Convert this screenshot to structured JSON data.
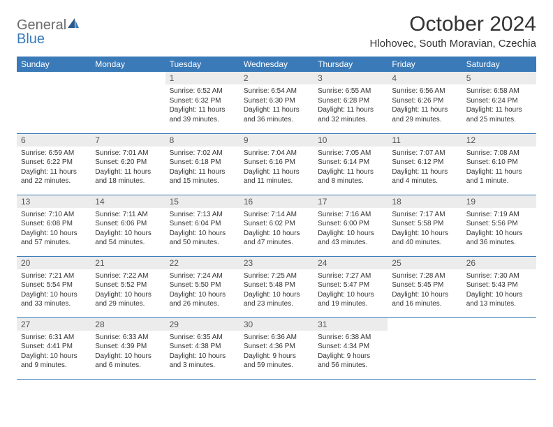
{
  "logo": {
    "text1": "General",
    "text2": "Blue"
  },
  "title": "October 2024",
  "location": "Hlohovec, South Moravian, Czechia",
  "colors": {
    "accent": "#3a7ab8",
    "header_bg": "#3a7ab8",
    "daynum_bg": "#ececec",
    "text": "#333333"
  },
  "weekdays": [
    "Sunday",
    "Monday",
    "Tuesday",
    "Wednesday",
    "Thursday",
    "Friday",
    "Saturday"
  ],
  "weeks": [
    [
      {
        "empty": true
      },
      {
        "empty": true
      },
      {
        "num": "1",
        "sunrise": "Sunrise: 6:52 AM",
        "sunset": "Sunset: 6:32 PM",
        "daylight": "Daylight: 11 hours and 39 minutes."
      },
      {
        "num": "2",
        "sunrise": "Sunrise: 6:54 AM",
        "sunset": "Sunset: 6:30 PM",
        "daylight": "Daylight: 11 hours and 36 minutes."
      },
      {
        "num": "3",
        "sunrise": "Sunrise: 6:55 AM",
        "sunset": "Sunset: 6:28 PM",
        "daylight": "Daylight: 11 hours and 32 minutes."
      },
      {
        "num": "4",
        "sunrise": "Sunrise: 6:56 AM",
        "sunset": "Sunset: 6:26 PM",
        "daylight": "Daylight: 11 hours and 29 minutes."
      },
      {
        "num": "5",
        "sunrise": "Sunrise: 6:58 AM",
        "sunset": "Sunset: 6:24 PM",
        "daylight": "Daylight: 11 hours and 25 minutes."
      }
    ],
    [
      {
        "num": "6",
        "sunrise": "Sunrise: 6:59 AM",
        "sunset": "Sunset: 6:22 PM",
        "daylight": "Daylight: 11 hours and 22 minutes."
      },
      {
        "num": "7",
        "sunrise": "Sunrise: 7:01 AM",
        "sunset": "Sunset: 6:20 PM",
        "daylight": "Daylight: 11 hours and 18 minutes."
      },
      {
        "num": "8",
        "sunrise": "Sunrise: 7:02 AM",
        "sunset": "Sunset: 6:18 PM",
        "daylight": "Daylight: 11 hours and 15 minutes."
      },
      {
        "num": "9",
        "sunrise": "Sunrise: 7:04 AM",
        "sunset": "Sunset: 6:16 PM",
        "daylight": "Daylight: 11 hours and 11 minutes."
      },
      {
        "num": "10",
        "sunrise": "Sunrise: 7:05 AM",
        "sunset": "Sunset: 6:14 PM",
        "daylight": "Daylight: 11 hours and 8 minutes."
      },
      {
        "num": "11",
        "sunrise": "Sunrise: 7:07 AM",
        "sunset": "Sunset: 6:12 PM",
        "daylight": "Daylight: 11 hours and 4 minutes."
      },
      {
        "num": "12",
        "sunrise": "Sunrise: 7:08 AM",
        "sunset": "Sunset: 6:10 PM",
        "daylight": "Daylight: 11 hours and 1 minute."
      }
    ],
    [
      {
        "num": "13",
        "sunrise": "Sunrise: 7:10 AM",
        "sunset": "Sunset: 6:08 PM",
        "daylight": "Daylight: 10 hours and 57 minutes."
      },
      {
        "num": "14",
        "sunrise": "Sunrise: 7:11 AM",
        "sunset": "Sunset: 6:06 PM",
        "daylight": "Daylight: 10 hours and 54 minutes."
      },
      {
        "num": "15",
        "sunrise": "Sunrise: 7:13 AM",
        "sunset": "Sunset: 6:04 PM",
        "daylight": "Daylight: 10 hours and 50 minutes."
      },
      {
        "num": "16",
        "sunrise": "Sunrise: 7:14 AM",
        "sunset": "Sunset: 6:02 PM",
        "daylight": "Daylight: 10 hours and 47 minutes."
      },
      {
        "num": "17",
        "sunrise": "Sunrise: 7:16 AM",
        "sunset": "Sunset: 6:00 PM",
        "daylight": "Daylight: 10 hours and 43 minutes."
      },
      {
        "num": "18",
        "sunrise": "Sunrise: 7:17 AM",
        "sunset": "Sunset: 5:58 PM",
        "daylight": "Daylight: 10 hours and 40 minutes."
      },
      {
        "num": "19",
        "sunrise": "Sunrise: 7:19 AM",
        "sunset": "Sunset: 5:56 PM",
        "daylight": "Daylight: 10 hours and 36 minutes."
      }
    ],
    [
      {
        "num": "20",
        "sunrise": "Sunrise: 7:21 AM",
        "sunset": "Sunset: 5:54 PM",
        "daylight": "Daylight: 10 hours and 33 minutes."
      },
      {
        "num": "21",
        "sunrise": "Sunrise: 7:22 AM",
        "sunset": "Sunset: 5:52 PM",
        "daylight": "Daylight: 10 hours and 29 minutes."
      },
      {
        "num": "22",
        "sunrise": "Sunrise: 7:24 AM",
        "sunset": "Sunset: 5:50 PM",
        "daylight": "Daylight: 10 hours and 26 minutes."
      },
      {
        "num": "23",
        "sunrise": "Sunrise: 7:25 AM",
        "sunset": "Sunset: 5:48 PM",
        "daylight": "Daylight: 10 hours and 23 minutes."
      },
      {
        "num": "24",
        "sunrise": "Sunrise: 7:27 AM",
        "sunset": "Sunset: 5:47 PM",
        "daylight": "Daylight: 10 hours and 19 minutes."
      },
      {
        "num": "25",
        "sunrise": "Sunrise: 7:28 AM",
        "sunset": "Sunset: 5:45 PM",
        "daylight": "Daylight: 10 hours and 16 minutes."
      },
      {
        "num": "26",
        "sunrise": "Sunrise: 7:30 AM",
        "sunset": "Sunset: 5:43 PM",
        "daylight": "Daylight: 10 hours and 13 minutes."
      }
    ],
    [
      {
        "num": "27",
        "sunrise": "Sunrise: 6:31 AM",
        "sunset": "Sunset: 4:41 PM",
        "daylight": "Daylight: 10 hours and 9 minutes."
      },
      {
        "num": "28",
        "sunrise": "Sunrise: 6:33 AM",
        "sunset": "Sunset: 4:39 PM",
        "daylight": "Daylight: 10 hours and 6 minutes."
      },
      {
        "num": "29",
        "sunrise": "Sunrise: 6:35 AM",
        "sunset": "Sunset: 4:38 PM",
        "daylight": "Daylight: 10 hours and 3 minutes."
      },
      {
        "num": "30",
        "sunrise": "Sunrise: 6:36 AM",
        "sunset": "Sunset: 4:36 PM",
        "daylight": "Daylight: 9 hours and 59 minutes."
      },
      {
        "num": "31",
        "sunrise": "Sunrise: 6:38 AM",
        "sunset": "Sunset: 4:34 PM",
        "daylight": "Daylight: 9 hours and 56 minutes."
      },
      {
        "empty": true
      },
      {
        "empty": true
      }
    ]
  ]
}
